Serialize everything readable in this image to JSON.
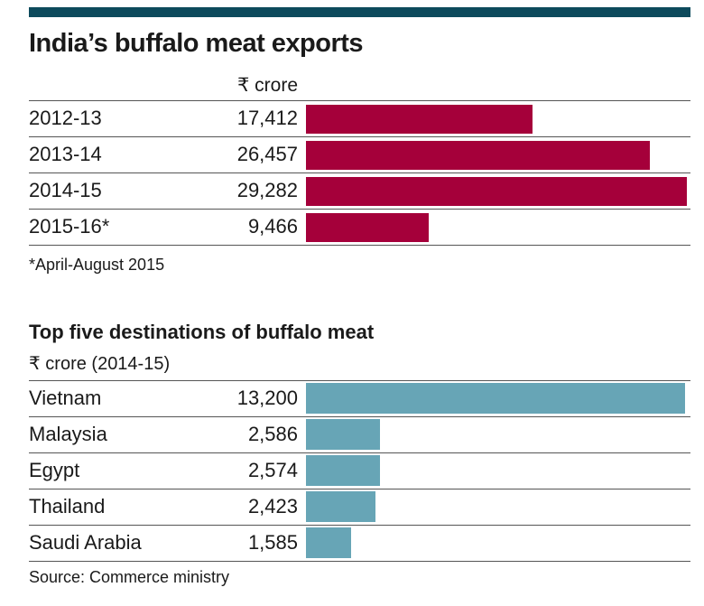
{
  "chart_data": [
    {
      "type": "bar",
      "orientation": "horizontal",
      "title": "India’s buffalo meat exports",
      "unit_label": "₹ crore",
      "categories": [
        "2012-13",
        "2013-14",
        "2014-15",
        "2015-16*"
      ],
      "value_labels": [
        "17,412",
        "26,457",
        "29,282",
        "9,466"
      ],
      "values": [
        17412,
        26457,
        29282,
        9466
      ],
      "xlim": [
        0,
        29282
      ],
      "color": "#a5003a",
      "footnote": "*April-August 2015"
    },
    {
      "type": "bar",
      "orientation": "horizontal",
      "title": "Top five destinations of buffalo meat",
      "unit_label": "₹ crore (2014-15)",
      "categories": [
        "Vietnam",
        "Malaysia",
        "Egypt",
        "Thailand",
        "Saudi Arabia"
      ],
      "value_labels": [
        "13,200",
        "2,586",
        "2,574",
        "2,423",
        "1,585"
      ],
      "values": [
        13200,
        2586,
        2574,
        2423,
        1585
      ],
      "xlim": [
        0,
        13200
      ],
      "color": "#67a5b6"
    }
  ],
  "source": "Source: Commerce ministry"
}
